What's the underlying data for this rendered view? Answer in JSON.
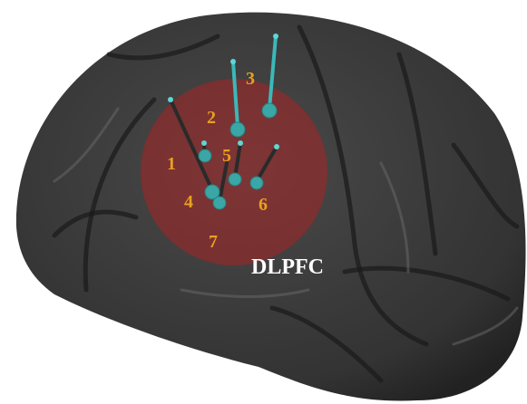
{
  "electrode_labels": [
    "1",
    "2",
    "3",
    "4",
    "5",
    "6",
    "7"
  ],
  "region_label": "DLPFC"
}
